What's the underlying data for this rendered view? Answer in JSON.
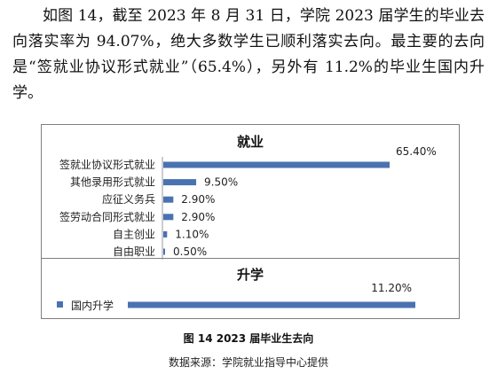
{
  "paragraph": "如图 14，截至 2023 年 8 月 31 日，学院 2023 届学生的毕业去向落实率为 94.07%，绝大多数学生已顺利落实去向。最主要的去向是“签就业协议形式就业”（65.4%），另外有 11.2%的毕业生国内升学。",
  "chart_data": [
    {
      "type": "bar",
      "orientation": "horizontal",
      "title": "就业",
      "categories": [
        "签就业协议形式就业",
        "其他录用形式就业",
        "应征义务兵",
        "签劳动合同形式就业",
        "自主创业",
        "自由职业"
      ],
      "values": [
        65.4,
        9.5,
        2.9,
        2.9,
        1.1,
        0.5
      ],
      "value_labels": [
        "65.40%",
        "9.50%",
        "2.90%",
        "2.90%",
        "1.10%",
        "0.50%"
      ],
      "color": "#4a72b0",
      "xlim": [
        0,
        70
      ]
    },
    {
      "type": "bar",
      "orientation": "horizontal",
      "title": "升学",
      "categories": [
        "国内升学"
      ],
      "values": [
        11.2
      ],
      "value_labels": [
        "11.20%"
      ],
      "legend": [
        "国内升学"
      ],
      "color": "#4a72b0",
      "xlim": [
        0,
        11.2
      ]
    }
  ],
  "caption": "图 14 2023 届毕业生去向",
  "source": "数据来源：学院就业指导中心提供"
}
